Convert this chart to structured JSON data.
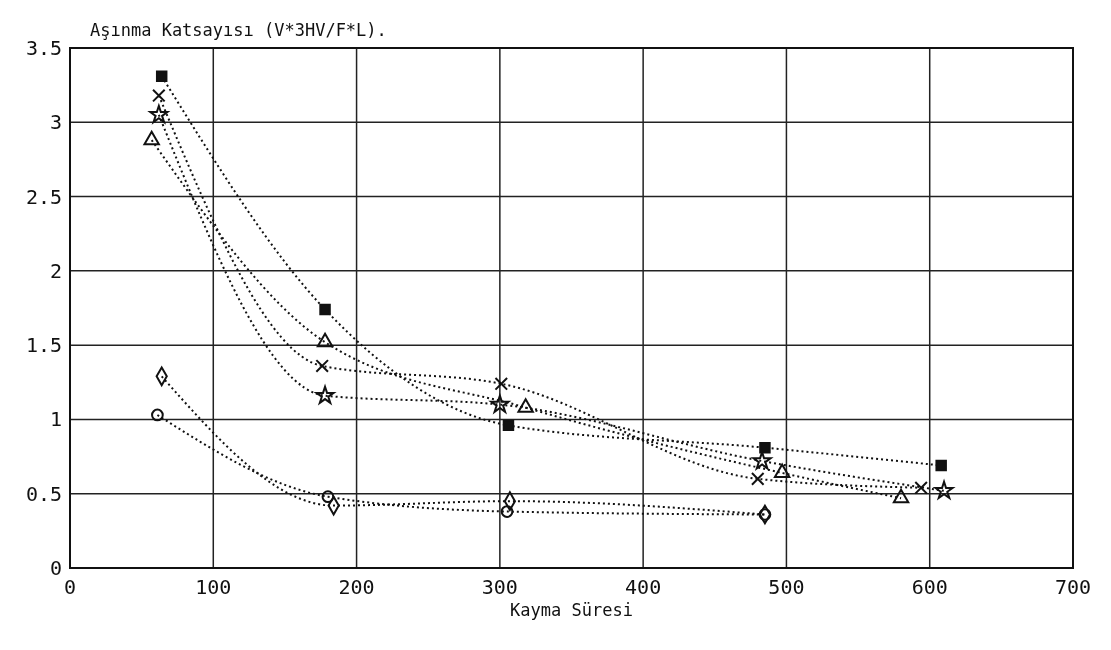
{
  "chart_data": {
    "type": "line",
    "title": "Aşınma Katsayısı (V*3HV/F*L).",
    "xlabel": "Kayma Süresi",
    "xlim": [
      0,
      700
    ],
    "xticks": [
      0,
      100,
      200,
      300,
      400,
      500,
      600,
      700
    ],
    "ylim": [
      0,
      3.5
    ],
    "yticks": [
      0,
      0.5,
      1,
      1.5,
      2,
      2.5,
      3,
      3.5
    ],
    "grid": true,
    "line_style": "dotted",
    "series": [
      {
        "color": "#111111",
        "marker": "square",
        "x": [
          64,
          178,
          306,
          485,
          608
        ],
        "values": [
          3.31,
          1.74,
          0.96,
          0.81,
          0.69
        ]
      },
      {
        "color": "#111111",
        "marker": "cross",
        "x": [
          62,
          176,
          301,
          480,
          594
        ],
        "values": [
          3.18,
          1.36,
          1.24,
          0.6,
          0.54
        ]
      },
      {
        "color": "#111111",
        "marker": "triangle",
        "x": [
          57,
          178,
          318,
          497,
          580
        ],
        "values": [
          2.88,
          1.52,
          1.08,
          0.64,
          0.47
        ]
      },
      {
        "color": "#111111",
        "marker": "star",
        "x": [
          62,
          178,
          300,
          483,
          610
        ],
        "values": [
          3.05,
          1.16,
          1.1,
          0.72,
          0.52
        ]
      },
      {
        "color": "#111111",
        "marker": "diamond",
        "x": [
          64,
          184,
          307,
          485
        ],
        "values": [
          1.29,
          0.42,
          0.45,
          0.36
        ]
      },
      {
        "color": "#111111",
        "marker": "circle",
        "x": [
          61,
          180,
          305,
          485
        ],
        "values": [
          1.03,
          0.48,
          0.38,
          0.36
        ]
      }
    ]
  }
}
